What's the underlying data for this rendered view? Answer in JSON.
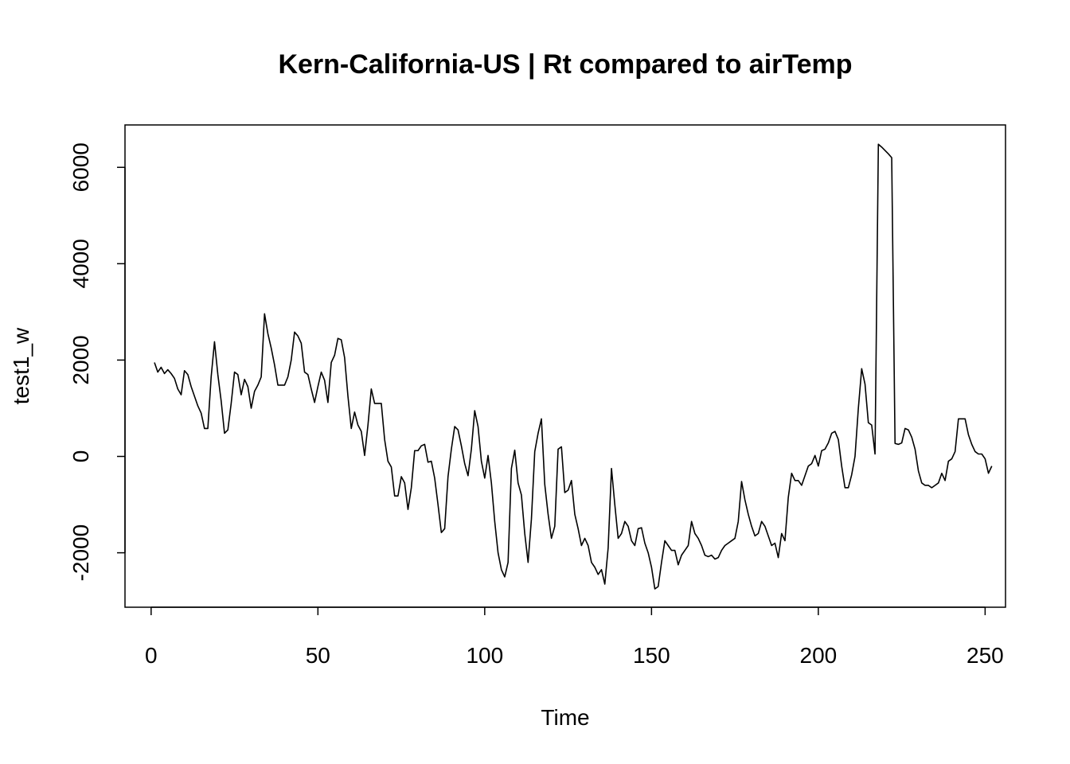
{
  "chart_data": {
    "type": "line",
    "title": "Kern-California-US | Rt compared to airTemp",
    "xlabel": "Time",
    "ylabel": "test1_w",
    "xlim": [
      1,
      248
    ],
    "ylim": [
      -2750,
      6500
    ],
    "x_ticks": [
      0,
      50,
      100,
      150,
      200,
      250
    ],
    "x_tick_labels": [
      "0",
      "50",
      "100",
      "150",
      "200",
      "250"
    ],
    "y_ticks": [
      -2000,
      0,
      2000,
      4000,
      6000
    ],
    "y_tick_labels": [
      "-2000",
      "0",
      "2000",
      "4000",
      "6000"
    ],
    "grid": false,
    "line_color": "#000000",
    "series": [
      {
        "values": [
          1950,
          1750,
          1850,
          1720,
          1800,
          1720,
          1620,
          1400,
          1280,
          1780,
          1700,
          1450,
          1250,
          1050,
          900,
          580,
          580,
          1650,
          2380,
          1700,
          1150,
          480,
          550,
          1100,
          1750,
          1700,
          1280,
          1600,
          1450,
          1000,
          1350,
          1480,
          1650,
          2960,
          2550,
          2250,
          1900,
          1480,
          1480,
          1480,
          1650,
          2000,
          2580,
          2500,
          2350,
          1750,
          1700,
          1400,
          1120,
          1450,
          1750,
          1580,
          1120,
          1950,
          2100,
          2450,
          2420,
          2050,
          1250,
          580,
          920,
          650,
          520,
          20,
          650,
          1400,
          1100,
          1100,
          1100,
          350,
          -100,
          -220,
          -820,
          -820,
          -420,
          -550,
          -1100,
          -650,
          120,
          120,
          220,
          250,
          -120,
          -100,
          -450,
          -1000,
          -1580,
          -1500,
          -420,
          150,
          620,
          550,
          220,
          -150,
          -400,
          150,
          950,
          620,
          -100,
          -450,
          20,
          -550,
          -1350,
          -2000,
          -2350,
          -2500,
          -2200,
          -250,
          130,
          -550,
          -800,
          -1600,
          -2200,
          -1300,
          100,
          480,
          780,
          -580,
          -1200,
          -1700,
          -1450,
          150,
          200,
          -750,
          -700,
          -500,
          -1200,
          -1500,
          -1850,
          -1700,
          -1850,
          -2200,
          -2300,
          -2450,
          -2350,
          -2650,
          -1900,
          -250,
          -1000,
          -1700,
          -1600,
          -1350,
          -1450,
          -1750,
          -1850,
          -1500,
          -1480,
          -1800,
          -2000,
          -2300,
          -2750,
          -2700,
          -2200,
          -1750,
          -1850,
          -1950,
          -1950,
          -2250,
          -2050,
          -1950,
          -1850,
          -1350,
          -1600,
          -1700,
          -1850,
          -2050,
          -2080,
          -2050,
          -2130,
          -2100,
          -1950,
          -1850,
          -1800,
          -1750,
          -1700,
          -1350,
          -520,
          -900,
          -1200,
          -1450,
          -1650,
          -1600,
          -1350,
          -1450,
          -1650,
          -1850,
          -1800,
          -2100,
          -1600,
          -1750,
          -850,
          -350,
          -500,
          -500,
          -600,
          -400,
          -200,
          -150,
          20,
          -200,
          120,
          150,
          280,
          480,
          520,
          350,
          -200,
          -650,
          -650,
          -380,
          0,
          1000,
          1820,
          1500,
          700,
          650,
          50,
          6480,
          6420,
          6350,
          6280,
          6200,
          270,
          250,
          280,
          580,
          550,
          400,
          150,
          -300,
          -550,
          -600,
          -600,
          -650,
          -600,
          -550,
          -350,
          -500,
          -100,
          -50,
          100,
          780,
          780,
          780,
          450,
          250,
          100,
          50,
          50,
          -50,
          -350,
          -200
        ]
      }
    ]
  }
}
